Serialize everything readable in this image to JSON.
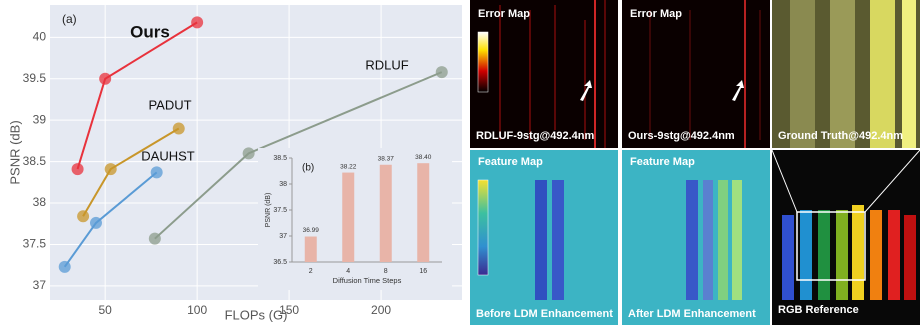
{
  "chart_data": [
    {
      "type": "line",
      "annotation": "(a)",
      "x_label": "FLOPs (G)",
      "y_label": "PSNR (dB)",
      "xlim": [
        20,
        244
      ],
      "ylim": [
        36.83,
        40.39
      ],
      "xticks": [
        50,
        100,
        150,
        200
      ],
      "yticks": [
        37,
        37.5,
        38,
        38.5,
        39,
        39.5,
        40
      ],
      "grid": true,
      "series": [
        {
          "name": "Ours",
          "color": "#e8323c",
          "x": [
            35,
            50,
            100
          ],
          "values": [
            38.41,
            39.5,
            40.18
          ]
        },
        {
          "name": "PADUT",
          "color": "#c8962a",
          "x": [
            38,
            53,
            90
          ],
          "values": [
            37.84,
            38.41,
            38.9
          ]
        },
        {
          "name": "DAUHST",
          "color": "#5a9bd5",
          "x": [
            28,
            45,
            78
          ],
          "values": [
            37.23,
            37.76,
            38.37
          ]
        },
        {
          "name": "RDLUF",
          "color": "#8c9c8c",
          "x": [
            77,
            128,
            233
          ],
          "values": [
            37.57,
            38.6,
            39.58
          ]
        }
      ]
    },
    {
      "type": "bar",
      "annotation": "(b)",
      "x_label": "Diffusion Time Steps",
      "y_label": "PSNR (dB)",
      "categories": [
        "2",
        "4",
        "8",
        "16"
      ],
      "values": [
        36.99,
        38.22,
        38.37,
        38.4
      ],
      "value_labels": [
        "36.99",
        "38.22",
        "38.37",
        "38.40"
      ],
      "color": "#e8b4a8",
      "ylim": [
        36.5,
        38.5
      ],
      "yticks": [
        36.5,
        37,
        37.5,
        38,
        38.5
      ]
    }
  ],
  "panels": {
    "error_left": {
      "title": "Error Map",
      "caption": "RDLUF-9stg@492.4nm"
    },
    "error_right": {
      "title": "Error Map",
      "caption": "Ours-9stg@492.4nm"
    },
    "ground_truth": {
      "caption": "Ground Truth@492.4nm"
    },
    "feature_left": {
      "title": "Feature Map",
      "caption": "Before LDM Enhancement"
    },
    "feature_right": {
      "title": "Feature Map",
      "caption": "After LDM Enhancement"
    },
    "rgb": {
      "caption": "RGB Reference"
    }
  }
}
